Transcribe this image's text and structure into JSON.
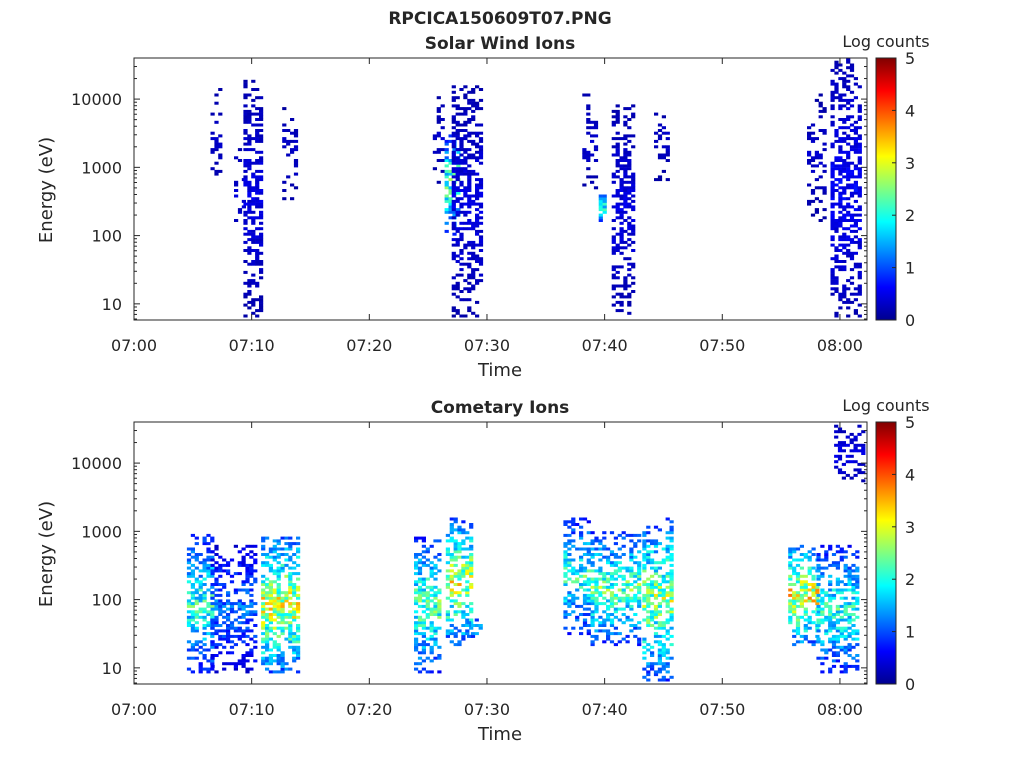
{
  "figure_title": "RPCICA150609T07.PNG",
  "colorbar_label": "Log counts",
  "colormap": [
    "#00008f",
    "#0000ff",
    "#0080ff",
    "#00ffff",
    "#80ff80",
    "#ffff00",
    "#ff8000",
    "#ff0000",
    "#800000"
  ],
  "chart_data": [
    {
      "type": "heatmap",
      "title": "Solar Wind Ions",
      "xlabel": "Time",
      "ylabel": "Energy (eV)",
      "x_ticks": [
        "07:00",
        "07:10",
        "07:20",
        "07:30",
        "07:40",
        "07:50",
        "08:00"
      ],
      "y_ticks": [
        "10",
        "100",
        "1000",
        "10000"
      ],
      "y_scale": "log",
      "x_range_minutes": [
        0,
        62.3
      ],
      "y_range_eV": [
        5.8,
        40000
      ],
      "colorbar": {
        "label": "Log counts",
        "ticks": [
          "0",
          "1",
          "2",
          "3",
          "4",
          "5"
        ],
        "range": [
          0,
          5
        ]
      },
      "scans": [
        {
          "t0": 6.5,
          "t1": 7.3,
          "emin": 500,
          "emax": 15000,
          "level": 0.25,
          "fill": 0.35
        },
        {
          "t0": 8.5,
          "t1": 9.3,
          "emin": 70,
          "emax": 2500,
          "level": 0.3,
          "fill": 0.2
        },
        {
          "t0": 9.3,
          "t1": 10.8,
          "emin": 6,
          "emax": 20000,
          "level": 0.35,
          "fill": 0.55
        },
        {
          "t0": 12.6,
          "t1": 13.9,
          "emin": 300,
          "emax": 8000,
          "level": 0.25,
          "fill": 0.3
        },
        {
          "t0": 25.4,
          "t1": 26.3,
          "emin": 500,
          "emax": 12000,
          "level": 0.25,
          "fill": 0.25
        },
        {
          "t0": 26.4,
          "t1": 27.4,
          "emin": 100,
          "emax": 3000,
          "level": 1.8,
          "fill": 0.6
        },
        {
          "t0": 27.0,
          "t1": 29.4,
          "emin": 6,
          "emax": 15000,
          "level": 0.35,
          "fill": 0.55
        },
        {
          "t0": 38.1,
          "t1": 39.3,
          "emin": 400,
          "emax": 15000,
          "level": 0.25,
          "fill": 0.3
        },
        {
          "t0": 39.5,
          "t1": 40.0,
          "emin": 150,
          "emax": 400,
          "level": 1.6,
          "fill": 0.7
        },
        {
          "t0": 40.6,
          "t1": 42.4,
          "emin": 6,
          "emax": 9000,
          "level": 0.35,
          "fill": 0.55
        },
        {
          "t0": 44.2,
          "t1": 45.3,
          "emin": 600,
          "emax": 8000,
          "level": 0.25,
          "fill": 0.3
        },
        {
          "t0": 57.2,
          "t1": 58.6,
          "emin": 150,
          "emax": 12000,
          "level": 0.25,
          "fill": 0.3
        },
        {
          "t0": 59.2,
          "t1": 61.8,
          "emin": 6,
          "emax": 40000,
          "level": 0.45,
          "fill": 0.55
        }
      ]
    },
    {
      "type": "heatmap",
      "title": "Cometary Ions",
      "xlabel": "Time",
      "ylabel": "Energy (eV)",
      "x_ticks": [
        "07:00",
        "07:10",
        "07:20",
        "07:30",
        "07:40",
        "07:50",
        "08:00"
      ],
      "y_ticks": [
        "10",
        "100",
        "1000",
        "10000"
      ],
      "y_scale": "log",
      "x_range_minutes": [
        0,
        62.3
      ],
      "y_range_eV": [
        5.8,
        40000
      ],
      "colorbar": {
        "label": "Log counts",
        "ticks": [
          "0",
          "1",
          "2",
          "3",
          "4",
          "5"
        ],
        "range": [
          0,
          5
        ]
      },
      "scans": [
        {
          "t0": 4.5,
          "t1": 6.5,
          "emin": 8,
          "emax": 900,
          "level": 1.6,
          "fill": 0.6
        },
        {
          "t0": 6.5,
          "t1": 10.3,
          "emin": 8,
          "emax": 600,
          "level": 0.9,
          "fill": 0.5
        },
        {
          "t0": 10.8,
          "t1": 13.8,
          "emin": 8,
          "emax": 800,
          "level": 2.3,
          "fill": 0.65
        },
        {
          "t0": 23.8,
          "t1": 25.8,
          "emin": 8,
          "emax": 800,
          "level": 1.8,
          "fill": 0.6
        },
        {
          "t0": 26.5,
          "t1": 28.5,
          "emin": 20,
          "emax": 1500,
          "level": 2.2,
          "fill": 0.6
        },
        {
          "t0": 28.3,
          "t1": 29.3,
          "emin": 25,
          "emax": 50,
          "level": 1.3,
          "fill": 0.6
        },
        {
          "t0": 36.5,
          "t1": 38.5,
          "emin": 30,
          "emax": 1500,
          "level": 1.6,
          "fill": 0.55
        },
        {
          "t0": 38.8,
          "t1": 43.0,
          "emin": 20,
          "emax": 1000,
          "level": 1.8,
          "fill": 0.55
        },
        {
          "t0": 43.2,
          "t1": 45.8,
          "emin": 6,
          "emax": 1500,
          "level": 2.0,
          "fill": 0.6
        },
        {
          "t0": 55.6,
          "t1": 58.0,
          "emin": 20,
          "emax": 600,
          "level": 2.4,
          "fill": 0.6
        },
        {
          "t0": 58.0,
          "t1": 61.4,
          "emin": 8,
          "emax": 600,
          "level": 1.6,
          "fill": 0.55
        },
        {
          "t0": 59.5,
          "t1": 62.0,
          "emin": 5000,
          "emax": 40000,
          "level": 0.4,
          "fill": 0.4
        }
      ]
    }
  ]
}
